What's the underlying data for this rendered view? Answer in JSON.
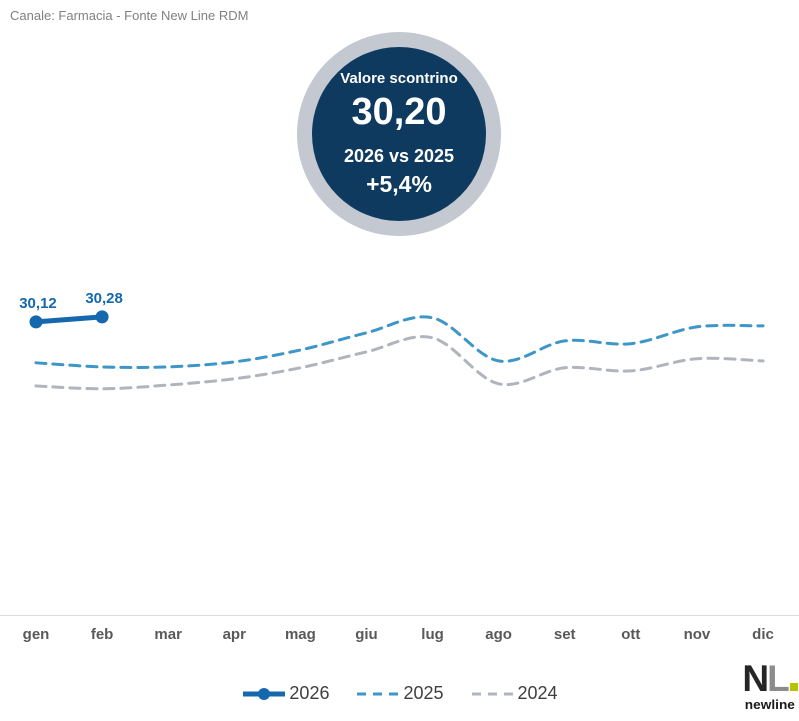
{
  "header": {
    "source_note": "Canale: Farmacia - Fonte New Line RDM"
  },
  "badge": {
    "title": "Valore scontrino",
    "value": "30,20",
    "comparison": "2026 vs 2025",
    "delta": "+5,4%",
    "inner_color": "#0e3a5f",
    "ring_color": "#c3c8d1"
  },
  "chart_data": {
    "type": "line",
    "title": "Valore scontrino",
    "xlabel": "",
    "ylabel": "",
    "categories": [
      "gen",
      "feb",
      "mar",
      "apr",
      "mag",
      "giu",
      "lug",
      "ago",
      "set",
      "ott",
      "nov",
      "dic"
    ],
    "series": [
      {
        "name": "2026",
        "color": "#1668ae",
        "style": "solid",
        "marker": true,
        "values": [
          30.12,
          30.28,
          null,
          null,
          null,
          null,
          null,
          null,
          null,
          null,
          null,
          null
        ],
        "point_labels": [
          "30,12",
          "30,28"
        ]
      },
      {
        "name": "2025",
        "color": "#3e96c8",
        "style": "dashed",
        "marker": false,
        "values": [
          28.81,
          28.68,
          28.68,
          28.84,
          29.22,
          29.77,
          30.25,
          28.87,
          29.51,
          29.42,
          29.96,
          29.99
        ],
        "point_labels": []
      },
      {
        "name": "2024",
        "color": "#b0b4bc",
        "style": "dashed",
        "marker": false,
        "values": [
          28.07,
          27.98,
          28.1,
          28.3,
          28.65,
          29.16,
          29.61,
          28.14,
          28.65,
          28.55,
          28.94,
          28.87
        ],
        "point_labels": []
      }
    ],
    "ylim": [
      20.74,
      32.42
    ],
    "grid": false,
    "legend_position": "bottom",
    "axis_label_color": "#595959"
  },
  "logo": {
    "monogram_n": "N",
    "monogram_l": "L",
    "wordmark": "newline",
    "accent_color": "#b6c400"
  }
}
